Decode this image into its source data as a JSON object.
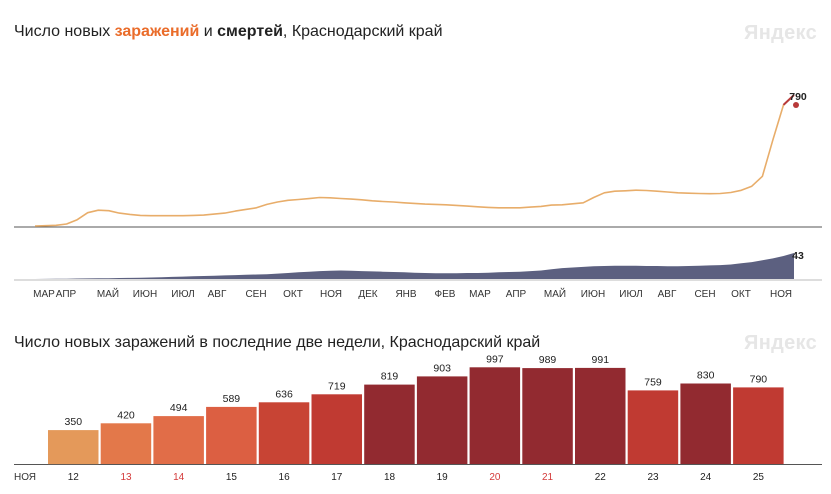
{
  "header1": {
    "prefix": "Число новых ",
    "infections_word": "заражений",
    "conj": " и ",
    "deaths_word": "смертей",
    "suffix": ", Краснодарский край"
  },
  "header2": {
    "title": "Число новых заражений в последние две недели, Краснодарский край"
  },
  "brand": {
    "logo": "Яндекс"
  },
  "colors": {
    "infections_line": "#e8ad6a",
    "infections_end": "#b83a3a",
    "deaths_area": "#5c6080",
    "baseline": "#555555"
  },
  "chart_data": [
    {
      "type": "line",
      "series": [
        {
          "values": [
            0,
            2,
            4,
            12,
            38,
            80,
            95,
            92,
            78,
            70,
            64,
            62,
            62,
            62,
            62,
            64,
            66,
            72,
            78,
            90,
            100,
            110,
            130,
            145,
            155,
            160,
            165,
            172,
            170,
            166,
            162,
            158,
            152,
            148,
            145,
            140,
            136,
            132,
            130,
            128,
            124,
            120,
            116,
            112,
            110,
            110,
            110,
            114,
            118,
            126,
            128,
            134,
            140,
            172,
            200,
            210,
            212,
            216,
            214,
            210,
            205,
            200,
            198,
            196,
            195,
            196,
            202,
            215,
            240,
            300,
            520,
            730,
            790
          ]
        },
        {
          "values": [
            0,
            0.2,
            0.3,
            0.5,
            0.8,
            1,
            1.2,
            1.4,
            1.6,
            1.8,
            2,
            2.5,
            3,
            3.5,
            4,
            4.5,
            5,
            5.5,
            6,
            6.5,
            7,
            7.5,
            8,
            9,
            10,
            11,
            12,
            13,
            13.5,
            14,
            13.5,
            13,
            12.5,
            12,
            11.5,
            11,
            10.5,
            10,
            9.5,
            9.5,
            9.5,
            10,
            10,
            10.5,
            11,
            11.5,
            12,
            13,
            14,
            16,
            18,
            19,
            20,
            21,
            21.5,
            22,
            22,
            22,
            21.5,
            21.5,
            21,
            21,
            21.5,
            22,
            22.5,
            23,
            24,
            26,
            28,
            31,
            34,
            38,
            43
          ]
        }
      ],
      "x_ticks": [
        "МАР",
        "АПР",
        "МАЙ",
        "ИЮН",
        "ИЮЛ",
        "АВГ",
        "СЕН",
        "ОКТ",
        "НОЯ",
        "ДЕК",
        "ЯНВ",
        "ФЕВ",
        "МАР",
        "АПР",
        "МАЙ",
        "ИЮН",
        "ИЮЛ",
        "АВГ",
        "СЕН",
        "ОКТ",
        "НОЯ"
      ],
      "last_infections_label": "790",
      "last_deaths_label": "43"
    },
    {
      "type": "bar",
      "month_label": "НОЯ",
      "categories": [
        "12",
        "13",
        "14",
        "15",
        "16",
        "17",
        "18",
        "19",
        "20",
        "21",
        "22",
        "23",
        "24",
        "25"
      ],
      "values": [
        350,
        420,
        494,
        589,
        636,
        719,
        819,
        903,
        997,
        989,
        991,
        759,
        830,
        790
      ],
      "bar_colors": [
        "#e4995a",
        "#e3784a",
        "#e16d48",
        "#dc5f42",
        "#c84434",
        "#c03a32",
        "#922a30",
        "#922a30",
        "#922a30",
        "#922a30",
        "#922a30",
        "#c03a32",
        "#922a30",
        "#c03a32"
      ],
      "label_colors": [
        "#222222",
        "#d43a3a",
        "#d43a3a",
        "#222222",
        "#222222",
        "#222222",
        "#222222",
        "#222222",
        "#d43a3a",
        "#d43a3a",
        "#222222",
        "#222222",
        "#222222",
        "#222222"
      ],
      "ylim": [
        0,
        1000
      ]
    }
  ]
}
